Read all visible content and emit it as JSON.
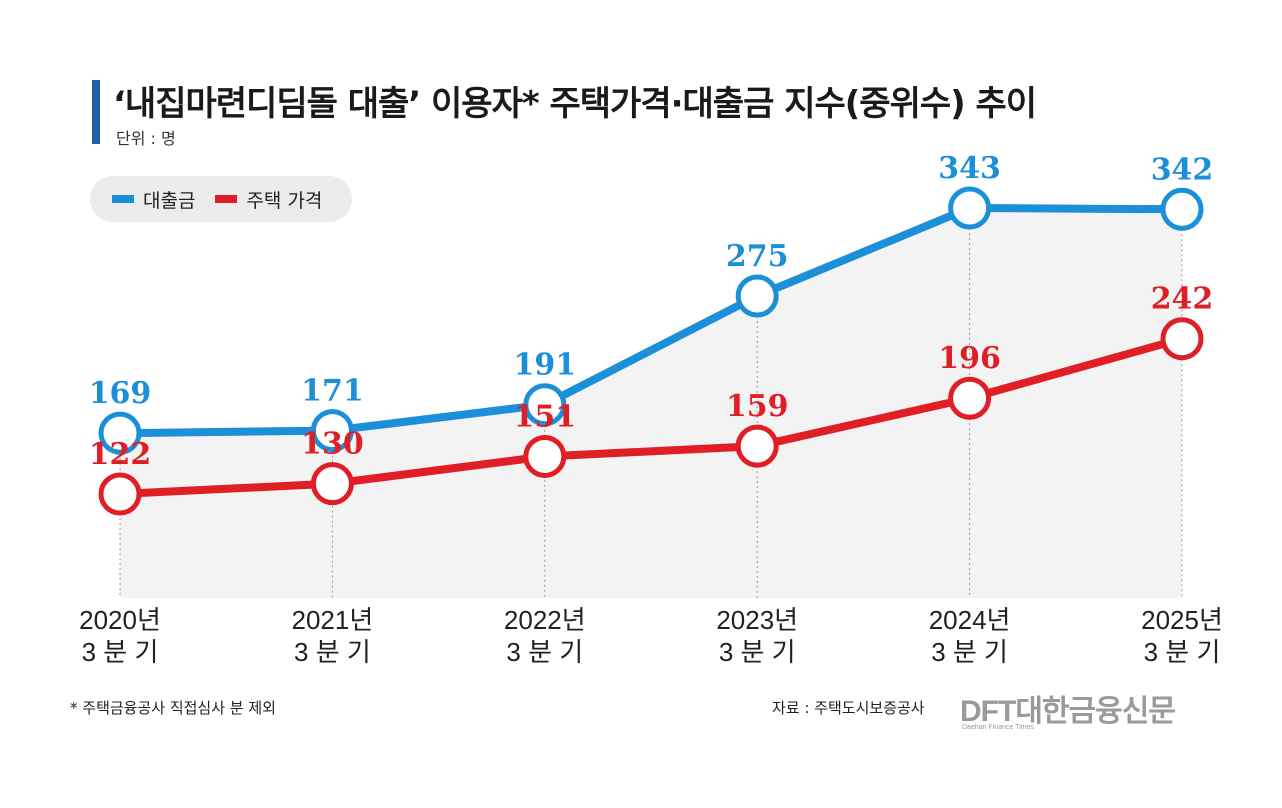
{
  "title": "‘내집마련디딤돌 대출’ 이용자* 주택가격·대출금 지수(중위수) 추이",
  "unit": "단위 : 명",
  "legend": {
    "loan": "대출금",
    "house": "주택 가격"
  },
  "colors": {
    "loan": "#1b8fd8",
    "house": "#e01e26",
    "title_bar": "#1f5fa8"
  },
  "footnote": "* 주택금융공사 직접심사 분 제외",
  "source": "자료 : 주택도시보증공사",
  "logo": {
    "brand": "DFT대한금융신문",
    "sub": "Daehan Finance Times"
  },
  "chart_data": {
    "type": "line",
    "title": "‘내집마련디딤돌 대출’ 이용자* 주택가격·대출금 지수(중위수) 추이",
    "ylabel": "단위 : 명",
    "categories": [
      [
        "2020년",
        "3 분 기"
      ],
      [
        "2021년",
        "3 분 기"
      ],
      [
        "2022년",
        "3 분 기"
      ],
      [
        "2023년",
        "3 분 기"
      ],
      [
        "2024년",
        "3 분 기"
      ],
      [
        "2025년",
        "3 분 기"
      ]
    ],
    "series": [
      {
        "name": "대출금",
        "values": [
          169,
          171,
          191,
          275,
          343,
          342
        ]
      },
      {
        "name": "주택 가격",
        "values": [
          122,
          130,
          151,
          159,
          196,
          242
        ]
      }
    ],
    "ylim": [
      80,
      350
    ],
    "legend": "top-left"
  }
}
